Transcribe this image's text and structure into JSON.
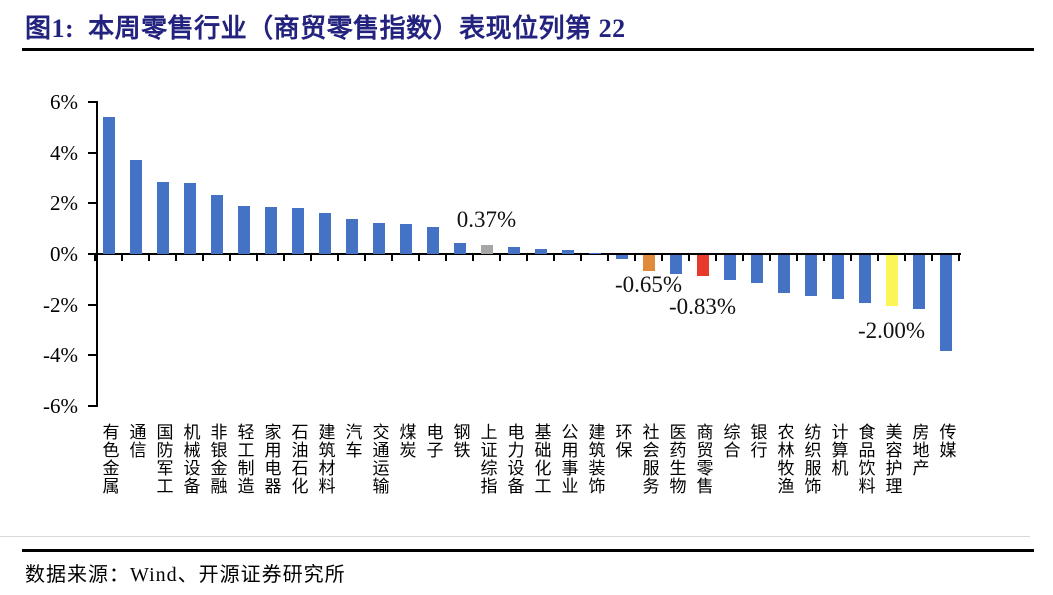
{
  "header": {
    "title": "图1:  本周零售行业（商贸零售指数）表现位列第 22",
    "title_color": "#23237F"
  },
  "footer": {
    "source_text": "数据来源：Wind、开源证券研究所"
  },
  "chart_data": {
    "type": "bar",
    "title": "本周零售行业（商贸零售指数）表现位列第22",
    "xlabel": "",
    "ylabel": "",
    "ylim": [
      -6,
      6
    ],
    "grid": false,
    "legend": false,
    "ytick_labels": [
      "6%",
      "4%",
      "2%",
      "0%",
      "-2%",
      "-4%",
      "-6%"
    ],
    "categories": [
      "有色金属",
      "通信",
      "国防军工",
      "机械设备",
      "非银金融",
      "轻工制造",
      "家用电器",
      "石油石化",
      "建筑材料",
      "汽车",
      "交通运输",
      "煤炭",
      "电子",
      "钢铁",
      "上证综指",
      "电力设备",
      "基础化工",
      "公用事业",
      "建筑装饰",
      "环保",
      "社会服务",
      "医药生物",
      "商贸零售",
      "综合",
      "银行",
      "农林牧渔",
      "纺织服饰",
      "计算机",
      "食品饮料",
      "美容护理",
      "房地产",
      "传媒"
    ],
    "values": [
      5.4,
      3.7,
      2.86,
      2.8,
      2.33,
      1.91,
      1.84,
      1.83,
      1.61,
      1.37,
      1.24,
      1.17,
      1.08,
      0.45,
      0.37,
      0.26,
      0.21,
      0.15,
      0.03,
      -0.14,
      -0.65,
      -0.74,
      -0.83,
      -0.99,
      -1.12,
      -1.49,
      -1.62,
      -1.72,
      -1.89,
      -2.0,
      -2.13,
      -3.79
    ],
    "colors": {
      "default": "#4472C4",
      "gray": "#A6A6A6",
      "orange": "#E18A3C",
      "red": "#E73A2B",
      "yellow": "#FBF557"
    },
    "highlight_indices": {
      "14": "gray",
      "20": "orange",
      "22": "red",
      "29": "yellow"
    },
    "annotations": [
      {
        "index": 14,
        "text": "0.37%",
        "placement": "above",
        "dy": 12
      },
      {
        "index": 20,
        "text": "-0.65%",
        "placement": "below",
        "dy": 2
      },
      {
        "index": 22,
        "text": "-0.83%",
        "placement": "below",
        "dy": 19
      },
      {
        "index": 29,
        "text": "-2.00%",
        "placement": "below",
        "dy": 13
      }
    ]
  }
}
